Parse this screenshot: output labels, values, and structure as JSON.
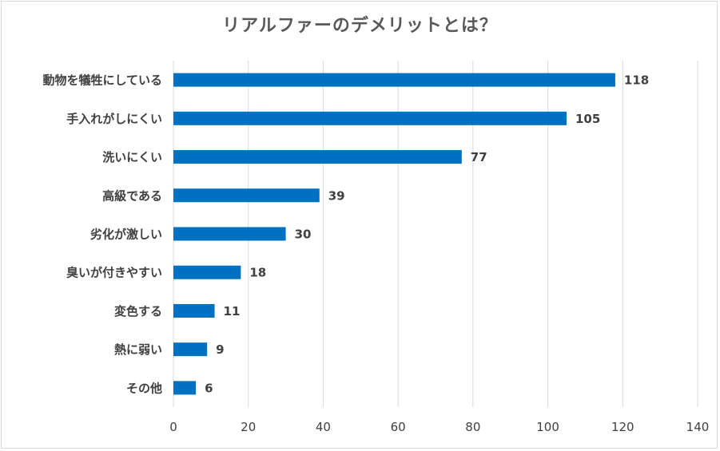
{
  "chart_data": {
    "type": "bar",
    "orientation": "horizontal",
    "title": "リアルファーのデメリットとは？",
    "categories": [
      "動物を犠牲にしている",
      "手入れがしにくい",
      "洗いにくい",
      "高級である",
      "劣化が激しい",
      "臭いが付きやすい",
      "変色する",
      "熱に弱い",
      "その他"
    ],
    "values": [
      118,
      105,
      77,
      39,
      30,
      18,
      11,
      9,
      6
    ],
    "xlim": [
      0,
      140
    ],
    "xticks": [
      0,
      20,
      40,
      60,
      80,
      100,
      120,
      140
    ],
    "grid": true,
    "data_labels": true,
    "bar_color": "#0070c0",
    "grid_color": "#d9d9d9"
  }
}
